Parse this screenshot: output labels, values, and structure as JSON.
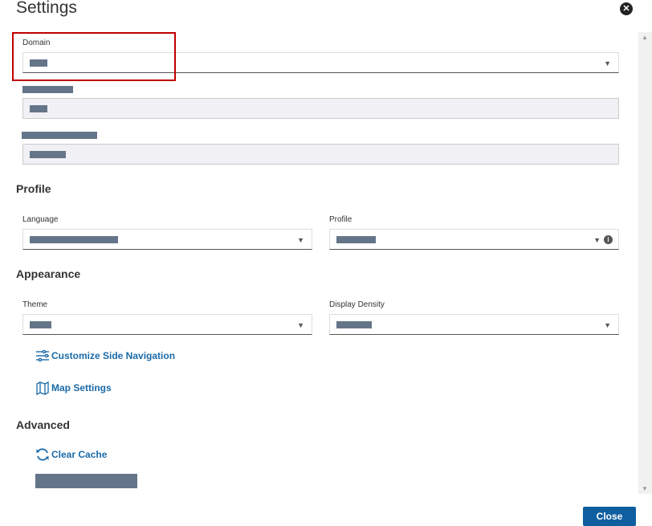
{
  "dialog": {
    "title": "Settings",
    "close_label": "Close"
  },
  "domain": {
    "label": "Domain"
  },
  "sections": {
    "profile": "Profile",
    "appearance": "Appearance",
    "advanced": "Advanced"
  },
  "fields": {
    "language": "Language",
    "profile": "Profile",
    "theme": "Theme",
    "display_density": "Display Density"
  },
  "links": {
    "customize_nav": "Customize Side Navigation",
    "map_settings": "Map Settings",
    "clear_cache": "Clear Cache"
  },
  "colors": {
    "accent": "#0f5fa0",
    "link": "#1a6aa8",
    "highlight": "#c00000",
    "redaction": "#657589"
  }
}
